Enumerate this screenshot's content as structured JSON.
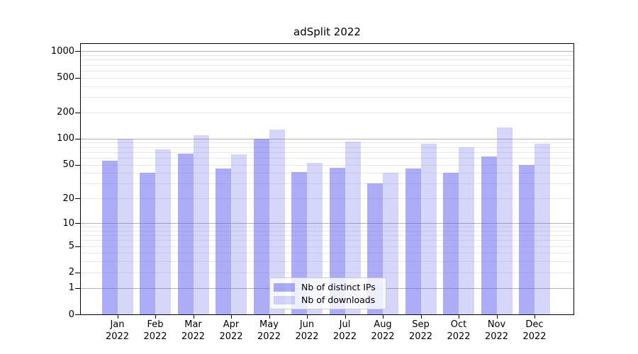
{
  "window": {
    "background": "#ffffff"
  },
  "chart_data": {
    "type": "bar",
    "title": "adSplit 2022",
    "categories": [
      "Jan 2022",
      "Feb 2022",
      "Mar 2022",
      "Apr 2022",
      "May 2022",
      "Jun 2022",
      "Jul 2022",
      "Aug 2022",
      "Sep 2022",
      "Oct 2022",
      "Nov 2022",
      "Dec 2022"
    ],
    "series": [
      {
        "name": "Nb of distinct IPs",
        "color": "rgba(95,95,240,0.52)",
        "values": [
          55,
          40,
          67,
          45,
          100,
          41,
          46,
          30,
          45,
          40,
          62,
          50
        ]
      },
      {
        "name": "Nb of downloads",
        "color": "rgba(95,95,240,0.26)",
        "values": [
          100,
          75,
          110,
          66,
          126,
          52,
          92,
          40,
          87,
          80,
          134,
          88
        ]
      }
    ],
    "xlabel": "",
    "ylabel": "",
    "yscale": "log1p",
    "ylim": [
      0,
      1250
    ],
    "yticks": [
      1000,
      500,
      200,
      100,
      50,
      20,
      10,
      5,
      2,
      1,
      0
    ],
    "major_gridlines": [
      1,
      10,
      100,
      1000
    ],
    "minor_gridlines": [
      2,
      3,
      4,
      5,
      6,
      7,
      8,
      9,
      20,
      30,
      40,
      50,
      60,
      70,
      80,
      90,
      200,
      300,
      400,
      500,
      600,
      700,
      800,
      900
    ],
    "grid": true,
    "legend_position": "lower center",
    "colors": {
      "major_grid": "#b3b3b3",
      "minor_grid": "#e8e8e8",
      "spine": "#000000",
      "text": "#000000",
      "legend_border": "#cccccc",
      "legend_background": "rgba(255,255,255,0.8)"
    }
  }
}
